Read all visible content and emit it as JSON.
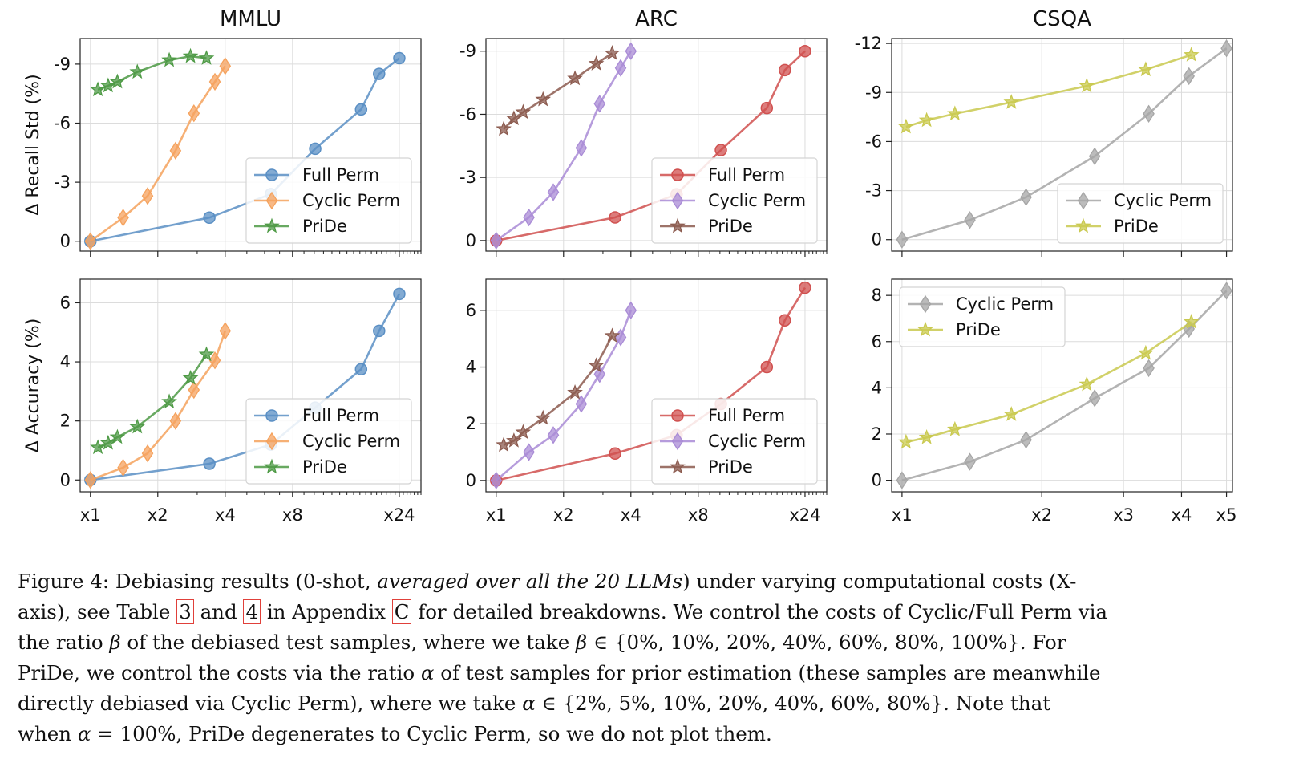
{
  "chart_data": [
    {
      "type": "line",
      "panel": "mmlu-recall",
      "title": "MMLU",
      "ylabel": "Δ Recall Std (%)",
      "xscale": "log",
      "xlim": [
        0.9,
        30
      ],
      "ylim": [
        0.5,
        -10.3
      ],
      "invert_y": true,
      "xticks": [
        {
          "v": 1,
          "label": ""
        },
        {
          "v": 2,
          "label": ""
        },
        {
          "v": 4,
          "label": ""
        },
        {
          "v": 8,
          "label": ""
        },
        {
          "v": 24,
          "label": ""
        }
      ],
      "yticks": [
        {
          "v": 0,
          "label": "0"
        },
        {
          "v": -3,
          "label": "-3"
        },
        {
          "v": -6,
          "label": "-6"
        },
        {
          "v": -9,
          "label": "-9"
        }
      ],
      "legend": "lower-right",
      "legend_entries": [
        "Full Perm",
        "Cyclic Perm",
        "PriDe"
      ],
      "series": [
        {
          "name": "Full Perm",
          "color": "#5a8fc4",
          "marker": "circle",
          "x": [
            1,
            3.4,
            6.4,
            10.1,
            16.2,
            19.5,
            24
          ],
          "y": [
            0,
            -1.2,
            -2.4,
            -4.7,
            -6.7,
            -8.5,
            -9.3
          ]
        },
        {
          "name": "Cyclic Perm",
          "color": "#f5a25d",
          "marker": "diamond",
          "x": [
            1,
            1.4,
            1.8,
            2.4,
            2.9,
            3.6,
            4
          ],
          "y": [
            0,
            -1.2,
            -2.3,
            -4.6,
            -6.5,
            -8.1,
            -8.9
          ]
        },
        {
          "name": "PriDe",
          "color": "#4e9a45",
          "marker": "star",
          "x": [
            1.08,
            1.2,
            1.32,
            1.62,
            2.25,
            2.8,
            3.3
          ],
          "y": [
            -7.7,
            -7.9,
            -8.1,
            -8.6,
            -9.2,
            -9.4,
            -9.3
          ]
        }
      ]
    },
    {
      "type": "line",
      "panel": "arc-recall",
      "title": "ARC",
      "ylabel": "",
      "xscale": "log",
      "xlim": [
        0.9,
        30
      ],
      "ylim": [
        0.5,
        -9.6
      ],
      "invert_y": true,
      "xticks": [
        {
          "v": 1,
          "label": ""
        },
        {
          "v": 2,
          "label": ""
        },
        {
          "v": 4,
          "label": ""
        },
        {
          "v": 8,
          "label": ""
        },
        {
          "v": 24,
          "label": ""
        }
      ],
      "yticks": [
        {
          "v": 0,
          "label": "0"
        },
        {
          "v": -3,
          "label": "-3"
        },
        {
          "v": -6,
          "label": "-6"
        },
        {
          "v": -9,
          "label": "-9"
        }
      ],
      "legend": "lower-right",
      "legend_entries": [
        "Full Perm",
        "Cyclic Perm",
        "PriDe"
      ],
      "series": [
        {
          "name": "Full Perm",
          "color": "#d0504f",
          "marker": "circle",
          "x": [
            1,
            3.4,
            6.4,
            10.1,
            16.2,
            19.5,
            24
          ],
          "y": [
            0,
            -1.1,
            -2.2,
            -4.3,
            -6.3,
            -8.1,
            -9.0
          ]
        },
        {
          "name": "Cyclic Perm",
          "color": "#a98bd6",
          "marker": "diamond",
          "x": [
            1,
            1.4,
            1.8,
            2.4,
            2.9,
            3.6,
            4
          ],
          "y": [
            0,
            -1.1,
            -2.3,
            -4.4,
            -6.5,
            -8.2,
            -9.0
          ]
        },
        {
          "name": "PriDe",
          "color": "#8c5b4f",
          "marker": "star",
          "x": [
            1.08,
            1.2,
            1.32,
            1.62,
            2.25,
            2.8,
            3.3
          ],
          "y": [
            -5.3,
            -5.8,
            -6.1,
            -6.7,
            -7.7,
            -8.4,
            -8.9
          ]
        }
      ]
    },
    {
      "type": "line",
      "panel": "csqa-recall",
      "title": "CSQA",
      "ylabel": "",
      "xscale": "log",
      "xlim": [
        0.95,
        5.15
      ],
      "ylim": [
        0.7,
        -12.3
      ],
      "invert_y": true,
      "xticks": [
        {
          "v": 1,
          "label": ""
        },
        {
          "v": 2,
          "label": ""
        },
        {
          "v": 3,
          "label": ""
        },
        {
          "v": 4,
          "label": ""
        },
        {
          "v": 5,
          "label": ""
        }
      ],
      "yticks": [
        {
          "v": 0,
          "label": "0"
        },
        {
          "v": -3,
          "label": "-3"
        },
        {
          "v": -6,
          "label": "-6"
        },
        {
          "v": -9,
          "label": "-9"
        },
        {
          "v": -12,
          "label": "-12"
        }
      ],
      "legend": "lower-right",
      "legend_entries": [
        "Cyclic Perm",
        "PriDe"
      ],
      "series": [
        {
          "name": "Cyclic Perm",
          "color": "#a6a6a6",
          "marker": "diamond",
          "x": [
            1,
            1.4,
            1.85,
            2.6,
            3.4,
            4.15,
            5
          ],
          "y": [
            0,
            -1.2,
            -2.6,
            -5.1,
            -7.7,
            -10.0,
            -11.7
          ]
        },
        {
          "name": "PriDe",
          "color": "#c9c94f",
          "marker": "star",
          "x": [
            1.02,
            1.13,
            1.3,
            1.72,
            2.5,
            3.35,
            4.2
          ],
          "y": [
            -6.9,
            -7.3,
            -7.7,
            -8.4,
            -9.4,
            -10.4,
            -11.3
          ]
        }
      ]
    },
    {
      "type": "line",
      "panel": "mmlu-acc",
      "title": "",
      "ylabel": "Δ Accuracy (%)",
      "xscale": "log",
      "xlim": [
        0.9,
        30
      ],
      "ylim": [
        -0.4,
        6.8
      ],
      "xticks": [
        {
          "v": 1,
          "label": "x1"
        },
        {
          "v": 2,
          "label": "x2"
        },
        {
          "v": 4,
          "label": "x4"
        },
        {
          "v": 8,
          "label": "x8"
        },
        {
          "v": 24,
          "label": "x24"
        }
      ],
      "yticks": [
        {
          "v": 0,
          "label": "0"
        },
        {
          "v": 2,
          "label": "2"
        },
        {
          "v": 4,
          "label": "4"
        },
        {
          "v": 6,
          "label": "6"
        }
      ],
      "legend": "lower-right",
      "legend_entries": [
        "Full Perm",
        "Cyclic Perm",
        "PriDe"
      ],
      "series": [
        {
          "name": "Full Perm",
          "color": "#5a8fc4",
          "marker": "circle",
          "x": [
            1,
            3.4,
            6.4,
            10.1,
            16.2,
            19.5,
            24
          ],
          "y": [
            0,
            0.55,
            1.2,
            2.45,
            3.75,
            5.05,
            6.3
          ]
        },
        {
          "name": "Cyclic Perm",
          "color": "#f5a25d",
          "marker": "diamond",
          "x": [
            1,
            1.4,
            1.8,
            2.4,
            2.9,
            3.6,
            4
          ],
          "y": [
            0,
            0.42,
            0.9,
            2.0,
            3.05,
            4.05,
            5.05
          ]
        },
        {
          "name": "PriDe",
          "color": "#4e9a45",
          "marker": "star",
          "x": [
            1.08,
            1.2,
            1.32,
            1.62,
            2.25,
            2.8,
            3.3
          ],
          "y": [
            1.1,
            1.25,
            1.45,
            1.8,
            2.65,
            3.45,
            4.25
          ]
        }
      ]
    },
    {
      "type": "line",
      "panel": "arc-acc",
      "title": "",
      "ylabel": "",
      "xscale": "log",
      "xlim": [
        0.9,
        30
      ],
      "ylim": [
        -0.4,
        7.1
      ],
      "xticks": [
        {
          "v": 1,
          "label": "x1"
        },
        {
          "v": 2,
          "label": "x2"
        },
        {
          "v": 4,
          "label": "x4"
        },
        {
          "v": 8,
          "label": "x8"
        },
        {
          "v": 24,
          "label": "x24"
        }
      ],
      "yticks": [
        {
          "v": 0,
          "label": "0"
        },
        {
          "v": 2,
          "label": "2"
        },
        {
          "v": 4,
          "label": "4"
        },
        {
          "v": 6,
          "label": "6"
        }
      ],
      "legend": "lower-right",
      "legend_entries": [
        "Full Perm",
        "Cyclic Perm",
        "PriDe"
      ],
      "series": [
        {
          "name": "Full Perm",
          "color": "#d0504f",
          "marker": "circle",
          "x": [
            1,
            3.4,
            6.4,
            10.1,
            16.2,
            19.5,
            24
          ],
          "y": [
            0,
            0.95,
            1.6,
            2.7,
            4.0,
            5.65,
            6.8
          ]
        },
        {
          "name": "Cyclic Perm",
          "color": "#a98bd6",
          "marker": "diamond",
          "x": [
            1,
            1.4,
            1.8,
            2.4,
            2.9,
            3.6,
            4
          ],
          "y": [
            0,
            1.0,
            1.6,
            2.7,
            3.75,
            5.05,
            6.0
          ]
        },
        {
          "name": "PriDe",
          "color": "#8c5b4f",
          "marker": "star",
          "x": [
            1.08,
            1.2,
            1.32,
            1.62,
            2.25,
            2.8,
            3.3
          ],
          "y": [
            1.25,
            1.4,
            1.7,
            2.2,
            3.1,
            4.05,
            5.1
          ]
        }
      ]
    },
    {
      "type": "line",
      "panel": "csqa-acc",
      "title": "",
      "ylabel": "",
      "xscale": "log",
      "xlim": [
        0.95,
        5.15
      ],
      "ylim": [
        -0.5,
        8.7
      ],
      "xticks": [
        {
          "v": 1,
          "label": "x1"
        },
        {
          "v": 2,
          "label": "x2"
        },
        {
          "v": 3,
          "label": "x3"
        },
        {
          "v": 4,
          "label": "x4"
        },
        {
          "v": 5,
          "label": "x5"
        }
      ],
      "yticks": [
        {
          "v": 0,
          "label": "0"
        },
        {
          "v": 2,
          "label": "2"
        },
        {
          "v": 4,
          "label": "4"
        },
        {
          "v": 6,
          "label": "6"
        },
        {
          "v": 8,
          "label": "8"
        }
      ],
      "legend": "upper-left",
      "legend_entries": [
        "Cyclic Perm",
        "PriDe"
      ],
      "series": [
        {
          "name": "Cyclic Perm",
          "color": "#a6a6a6",
          "marker": "diamond",
          "x": [
            1,
            1.4,
            1.85,
            2.6,
            3.4,
            4.15,
            5
          ],
          "y": [
            0,
            0.8,
            1.75,
            3.55,
            4.85,
            6.55,
            8.2
          ]
        },
        {
          "name": "PriDe",
          "color": "#c9c94f",
          "marker": "star",
          "x": [
            1.02,
            1.13,
            1.3,
            1.72,
            2.5,
            3.35,
            4.2
          ],
          "y": [
            1.65,
            1.85,
            2.2,
            2.85,
            4.15,
            5.5,
            6.85
          ]
        }
      ]
    }
  ],
  "caption": {
    "lines": [
      [
        "Figure 4: Debiasing results (0-shot, ",
        {
          "i": "averaged over all the 20 LLMs"
        },
        ") under varying computational costs (X-"
      ],
      [
        "axis), see Table ",
        {
          "box": "3"
        },
        " and ",
        {
          "box": "4"
        },
        " in Appendix ",
        {
          "box": "C"
        },
        " for detailed breakdowns. We control the costs of Cyclic/Full Perm via"
      ],
      [
        "the ratio ",
        {
          "i": "β"
        },
        " of the debiased test samples, where we take ",
        {
          "i": "β"
        },
        " ∈ {0%, 10%, 20%, 40%, 60%, 80%, 100%}.  For"
      ],
      [
        "PriDe, we control the costs via the ratio ",
        {
          "i": "α"
        },
        " of test samples for prior estimation (these samples are meanwhile"
      ],
      [
        "directly debiased via Cyclic Perm), where we take ",
        {
          "i": "α"
        },
        " ∈ {2%, 5%, 10%, 20%, 40%, 60%, 80%}.  Note that"
      ],
      [
        "when ",
        {
          "i": "α"
        },
        " = 100%, PriDe degenerates to Cyclic Perm, so we do not plot them."
      ]
    ]
  }
}
